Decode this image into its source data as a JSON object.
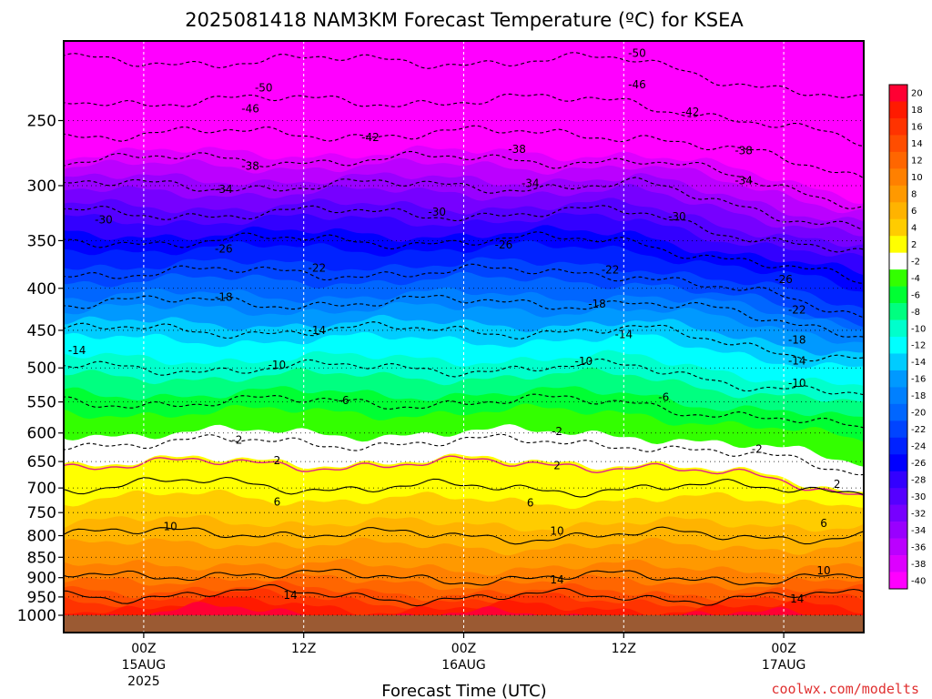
{
  "chart_data": {
    "type": "heatmap",
    "title": "2025081418 NAM3KM Forecast Temperature (ºC) for KSEA",
    "xlabel": "Forecast Time (UTC)",
    "ylabel": "",
    "credit": "coolwx.com/modelts",
    "y_axis": {
      "unit": "hPa",
      "scale": "log",
      "inverted": true,
      "range": [
        200,
        1000
      ],
      "ticks": [
        1000,
        950,
        900,
        850,
        800,
        750,
        700,
        650,
        600,
        550,
        500,
        450,
        400,
        350,
        300,
        250
      ],
      "tick_labels": [
        "1000",
        "950",
        "900",
        "850",
        "800",
        "750",
        "700",
        "650",
        "600",
        "550",
        "500",
        "450",
        "400",
        "350",
        "300",
        "250"
      ]
    },
    "x_axis": {
      "unit": "forecast hour",
      "range_hours_from_init": [
        0,
        60
      ],
      "ticks": [
        {
          "label": "00Z",
          "sub": "15AUG",
          "sub2": "2025",
          "valid_hour": 6
        },
        {
          "label": "12Z",
          "sub": "",
          "sub2": "",
          "valid_hour": 18
        },
        {
          "label": "00Z",
          "sub": "16AUG",
          "sub2": "",
          "valid_hour": 30
        },
        {
          "label": "12Z",
          "sub": "",
          "sub2": "",
          "valid_hour": 42
        },
        {
          "label": "00Z",
          "sub": "17AUG",
          "sub2": "",
          "valid_hour": 54
        }
      ]
    },
    "colorbar": {
      "labels": [
        "20",
        "18",
        "16",
        "14",
        "12",
        "10",
        "8",
        "6",
        "4",
        "2",
        "-2",
        "-4",
        "-6",
        "-8",
        "-10",
        "-12",
        "-14",
        "-16",
        "-18",
        "-20",
        "-22",
        "-24",
        "-26",
        "-28",
        "-30",
        "-32",
        "-34",
        "-36",
        "-38",
        "-40"
      ],
      "colors": [
        "#ff0033",
        "#ff1a00",
        "#ff3300",
        "#ff4d00",
        "#ff6600",
        "#ff8000",
        "#ff9900",
        "#ffb300",
        "#ffcc00",
        "#ffff00",
        "#ffffff",
        "#33ff00",
        "#00ff33",
        "#00ff80",
        "#00ffcc",
        "#00ffff",
        "#00ccff",
        "#0099ff",
        "#0080ff",
        "#0066ff",
        "#0044ff",
        "#0022ff",
        "#0000ff",
        "#3300ff",
        "#5500ff",
        "#7700ff",
        "#9900ff",
        "#bb00ff",
        "#dd00ff",
        "#ff00ff"
      ]
    },
    "levels_hpa": [
      1000,
      950,
      900,
      850,
      800,
      750,
      700,
      650,
      600,
      550,
      500,
      450,
      400,
      350,
      300,
      250,
      200
    ],
    "temperature_profile_c": [
      19,
      14,
      10,
      8,
      6,
      4,
      2,
      0,
      -3,
      -6,
      -10,
      -14,
      -20,
      -26,
      -34,
      -44,
      -52
    ],
    "isotherm_labels": [
      {
        "value": "-50",
        "hour": 43,
        "hpa": 207
      },
      {
        "value": "-50",
        "hour": 15,
        "hpa": 228
      },
      {
        "value": "-46",
        "hour": 14,
        "hpa": 242
      },
      {
        "value": "-46",
        "hour": 43,
        "hpa": 226
      },
      {
        "value": "-42",
        "hour": 23,
        "hpa": 262
      },
      {
        "value": "-42",
        "hour": 47,
        "hpa": 244
      },
      {
        "value": "-38",
        "hour": 14,
        "hpa": 284
      },
      {
        "value": "-38",
        "hour": 34,
        "hpa": 271
      },
      {
        "value": "-38",
        "hour": 51,
        "hpa": 272
      },
      {
        "value": "-34",
        "hour": 12,
        "hpa": 303
      },
      {
        "value": "-34",
        "hour": 35,
        "hpa": 298
      },
      {
        "value": "-34",
        "hour": 51,
        "hpa": 296
      },
      {
        "value": "-30",
        "hour": 3,
        "hpa": 330
      },
      {
        "value": "-30",
        "hour": 28,
        "hpa": 323
      },
      {
        "value": "-30",
        "hour": 46,
        "hpa": 327
      },
      {
        "value": "-26",
        "hour": 12,
        "hpa": 358
      },
      {
        "value": "-26",
        "hour": 33,
        "hpa": 354
      },
      {
        "value": "-26",
        "hour": 54,
        "hpa": 390
      },
      {
        "value": "-22",
        "hour": 19,
        "hpa": 378
      },
      {
        "value": "-22",
        "hour": 41,
        "hpa": 380
      },
      {
        "value": "-22",
        "hour": 55,
        "hpa": 425
      },
      {
        "value": "-18",
        "hour": 12,
        "hpa": 410
      },
      {
        "value": "-18",
        "hour": 40,
        "hpa": 418
      },
      {
        "value": "-18",
        "hour": 55,
        "hpa": 462
      },
      {
        "value": "-14",
        "hour": 1,
        "hpa": 476
      },
      {
        "value": "-14",
        "hour": 19,
        "hpa": 450
      },
      {
        "value": "-14",
        "hour": 42,
        "hpa": 455
      },
      {
        "value": "-14",
        "hour": 55,
        "hpa": 490
      },
      {
        "value": "-10",
        "hour": 16,
        "hpa": 496
      },
      {
        "value": "-10",
        "hour": 39,
        "hpa": 491
      },
      {
        "value": "-10",
        "hour": 55,
        "hpa": 522
      },
      {
        "value": "-6",
        "hour": 21,
        "hpa": 548
      },
      {
        "value": "-6",
        "hour": 45,
        "hpa": 543
      },
      {
        "value": "-2",
        "hour": 13,
        "hpa": 612
      },
      {
        "value": "-2",
        "hour": 37,
        "hpa": 597
      },
      {
        "value": "-2",
        "hour": 52,
        "hpa": 628
      },
      {
        "value": "2",
        "hour": 16,
        "hpa": 648
      },
      {
        "value": "2",
        "hour": 37,
        "hpa": 657
      },
      {
        "value": "2",
        "hour": 58,
        "hpa": 693
      },
      {
        "value": "6",
        "hour": 16,
        "hpa": 728
      },
      {
        "value": "6",
        "hour": 35,
        "hpa": 730
      },
      {
        "value": "6",
        "hour": 57,
        "hpa": 773
      },
      {
        "value": "10",
        "hour": 8,
        "hpa": 780
      },
      {
        "value": "10",
        "hour": 37,
        "hpa": 790
      },
      {
        "value": "10",
        "hour": 57,
        "hpa": 883
      },
      {
        "value": "14",
        "hour": 17,
        "hpa": 945
      },
      {
        "value": "14",
        "hour": 37,
        "hpa": 905
      },
      {
        "value": "14",
        "hour": 55,
        "hpa": 955
      }
    ]
  }
}
